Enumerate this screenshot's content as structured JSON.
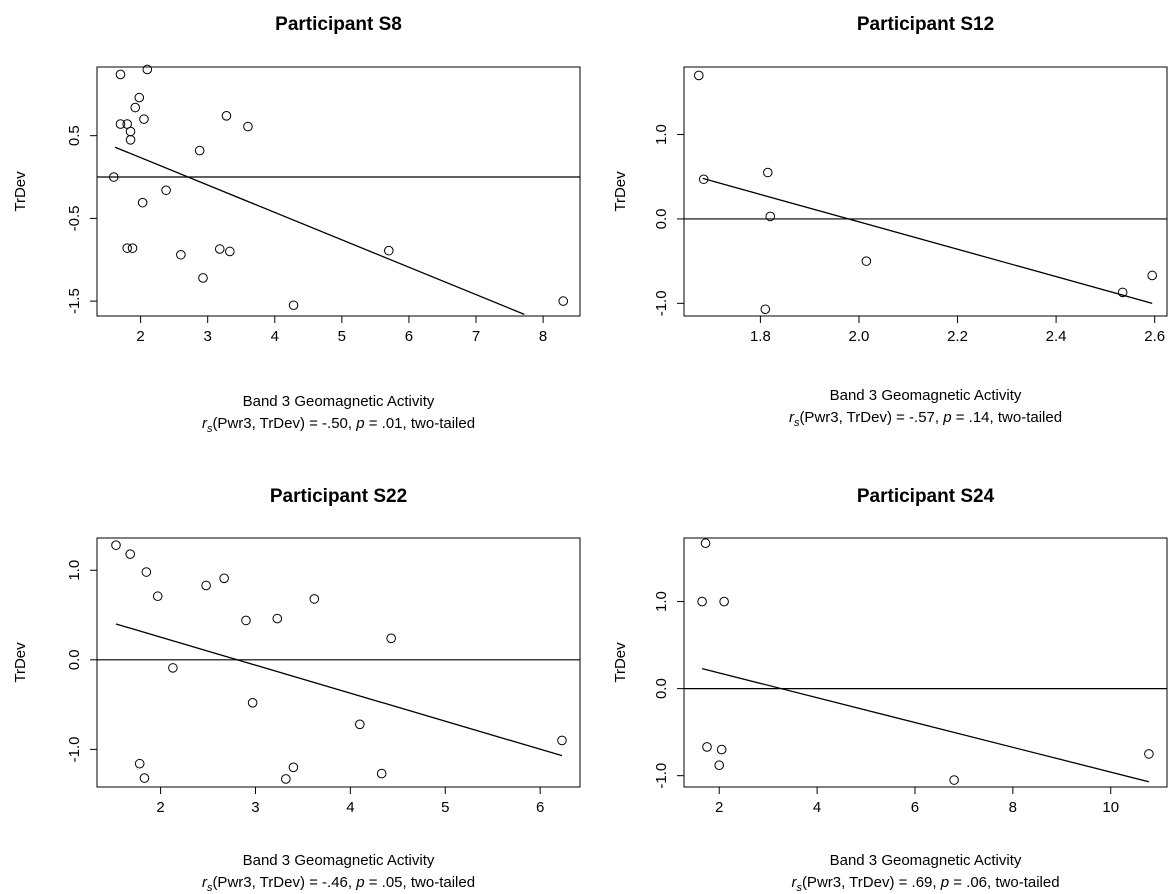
{
  "chart_data": [
    {
      "type": "scatter",
      "title": "Participant S8",
      "xlabel": "Band 3 Geomagnetic Activity",
      "ylabel": "TrDev",
      "caption": {
        "r": "r",
        "sub": "s",
        "mid": "(Pwr3, TrDev) = -.50, ",
        "p": "p",
        "end": " = .01, two-tailed"
      },
      "xlim": [
        1.35,
        8.55
      ],
      "ylim": [
        -1.68,
        1.33
      ],
      "xticks": [
        2,
        3,
        4,
        5,
        6,
        7,
        8
      ],
      "xtick_labels": [
        "2",
        "3",
        "4",
        "5",
        "6",
        "7",
        "8"
      ],
      "yticks": [
        -1.5,
        -0.5,
        0.5
      ],
      "ytick_labels": [
        "-1.5",
        "-0.5",
        "0.5"
      ],
      "hline": 0,
      "fit": {
        "x": [
          1.62,
          7.72
        ],
        "y": [
          0.36,
          -1.66
        ]
      },
      "points": [
        {
          "x": 1.6,
          "y": 0.0
        },
        {
          "x": 1.7,
          "y": 1.24
        },
        {
          "x": 1.7,
          "y": 0.64
        },
        {
          "x": 1.8,
          "y": 0.64
        },
        {
          "x": 1.8,
          "y": -0.86
        },
        {
          "x": 1.85,
          "y": 0.55
        },
        {
          "x": 1.85,
          "y": 0.45
        },
        {
          "x": 1.88,
          "y": -0.86
        },
        {
          "x": 1.92,
          "y": 0.84
        },
        {
          "x": 1.98,
          "y": 0.96
        },
        {
          "x": 2.03,
          "y": -0.31
        },
        {
          "x": 2.05,
          "y": 0.7
        },
        {
          "x": 2.1,
          "y": 1.3
        },
        {
          "x": 2.38,
          "y": -0.16
        },
        {
          "x": 2.6,
          "y": -0.94
        },
        {
          "x": 2.88,
          "y": 0.32
        },
        {
          "x": 2.93,
          "y": -1.22
        },
        {
          "x": 3.18,
          "y": -0.87
        },
        {
          "x": 3.28,
          "y": 0.74
        },
        {
          "x": 3.33,
          "y": -0.9
        },
        {
          "x": 3.6,
          "y": 0.61
        },
        {
          "x": 4.28,
          "y": -1.55
        },
        {
          "x": 5.7,
          "y": -0.89
        },
        {
          "x": 8.3,
          "y": -1.5
        }
      ]
    },
    {
      "type": "scatter",
      "title": "Participant S12",
      "xlabel": "Band 3 Geomagnetic Activity",
      "ylabel": "TrDev",
      "caption": {
        "r": "r",
        "sub": "s",
        "mid": "(Pwr3, TrDev) = -.57, ",
        "p": "p",
        "end": " = .14, two-tailed"
      },
      "xlim": [
        1.645,
        2.625
      ],
      "ylim": [
        -1.15,
        1.8
      ],
      "xticks": [
        1.8,
        2.0,
        2.2,
        2.4,
        2.6
      ],
      "xtick_labels": [
        "1.8",
        "2.0",
        "2.2",
        "2.4",
        "2.6"
      ],
      "yticks": [
        -1.0,
        0.0,
        1.0
      ],
      "ytick_labels": [
        "-1.0",
        "0.0",
        "1.0"
      ],
      "hline": 0,
      "fit": {
        "x": [
          1.683,
          2.595
        ],
        "y": [
          0.48,
          -1.0
        ]
      },
      "points": [
        {
          "x": 1.675,
          "y": 1.7
        },
        {
          "x": 1.685,
          "y": 0.47
        },
        {
          "x": 1.81,
          "y": -1.07
        },
        {
          "x": 1.815,
          "y": 0.55
        },
        {
          "x": 1.82,
          "y": 0.03
        },
        {
          "x": 2.015,
          "y": -0.5
        },
        {
          "x": 2.535,
          "y": -0.87
        },
        {
          "x": 2.595,
          "y": -0.67
        }
      ]
    },
    {
      "type": "scatter",
      "title": "Participant S22",
      "xlabel": "Band 3 Geomagnetic Activity",
      "ylabel": "TrDev",
      "caption": {
        "r": "r",
        "sub": "s",
        "mid": "(Pwr3, TrDev) = -.46, ",
        "p": "p",
        "end": " = .05, two-tailed"
      },
      "xlim": [
        1.33,
        6.42
      ],
      "ylim": [
        -1.42,
        1.36
      ],
      "xticks": [
        2,
        3,
        4,
        5,
        6
      ],
      "xtick_labels": [
        "2",
        "3",
        "4",
        "5",
        "6"
      ],
      "yticks": [
        -1.0,
        0.0,
        1.0
      ],
      "ytick_labels": [
        "-1.0",
        "0.0",
        "1.0"
      ],
      "hline": 0,
      "fit": {
        "x": [
          1.53,
          6.23
        ],
        "y": [
          0.4,
          -1.07
        ]
      },
      "points": [
        {
          "x": 1.53,
          "y": 1.28
        },
        {
          "x": 1.68,
          "y": 1.18
        },
        {
          "x": 1.78,
          "y": -1.16
        },
        {
          "x": 1.83,
          "y": -1.32
        },
        {
          "x": 1.85,
          "y": 0.98
        },
        {
          "x": 1.97,
          "y": 0.71
        },
        {
          "x": 2.13,
          "y": -0.09
        },
        {
          "x": 2.48,
          "y": 0.83
        },
        {
          "x": 2.67,
          "y": 0.91
        },
        {
          "x": 2.9,
          "y": 0.44
        },
        {
          "x": 2.97,
          "y": -0.48
        },
        {
          "x": 3.23,
          "y": 0.46
        },
        {
          "x": 3.32,
          "y": -1.33
        },
        {
          "x": 3.4,
          "y": -1.2
        },
        {
          "x": 3.62,
          "y": 0.68
        },
        {
          "x": 4.1,
          "y": -0.72
        },
        {
          "x": 4.33,
          "y": -1.27
        },
        {
          "x": 4.43,
          "y": 0.24
        },
        {
          "x": 6.23,
          "y": -0.9
        }
      ]
    },
    {
      "type": "scatter",
      "title": "Participant S24",
      "xlabel": "Band 3 Geomagnetic Activity",
      "ylabel": "TrDev",
      "caption": {
        "r": "r",
        "sub": "s",
        "mid": "(Pwr3, TrDev) = .69, ",
        "p": "p",
        "end": " = .06, two-tailed"
      },
      "xlim": [
        1.28,
        11.15
      ],
      "ylim": [
        -1.13,
        1.73
      ],
      "xticks": [
        2,
        4,
        6,
        8,
        10
      ],
      "xtick_labels": [
        "2",
        "4",
        "6",
        "8",
        "10"
      ],
      "yticks": [
        -1.0,
        0.0,
        1.0
      ],
      "ytick_labels": [
        "-1.0",
        "0.0",
        "1.0"
      ],
      "hline": 0,
      "fit": {
        "x": [
          1.65,
          10.78
        ],
        "y": [
          0.23,
          -1.07
        ]
      },
      "points": [
        {
          "x": 1.65,
          "y": 1.0
        },
        {
          "x": 1.72,
          "y": 1.67
        },
        {
          "x": 1.75,
          "y": -0.67
        },
        {
          "x": 2.0,
          "y": -0.88
        },
        {
          "x": 2.05,
          "y": -0.7
        },
        {
          "x": 2.1,
          "y": 1.0
        },
        {
          "x": 6.8,
          "y": -1.05
        },
        {
          "x": 10.78,
          "y": -0.75
        }
      ]
    }
  ]
}
